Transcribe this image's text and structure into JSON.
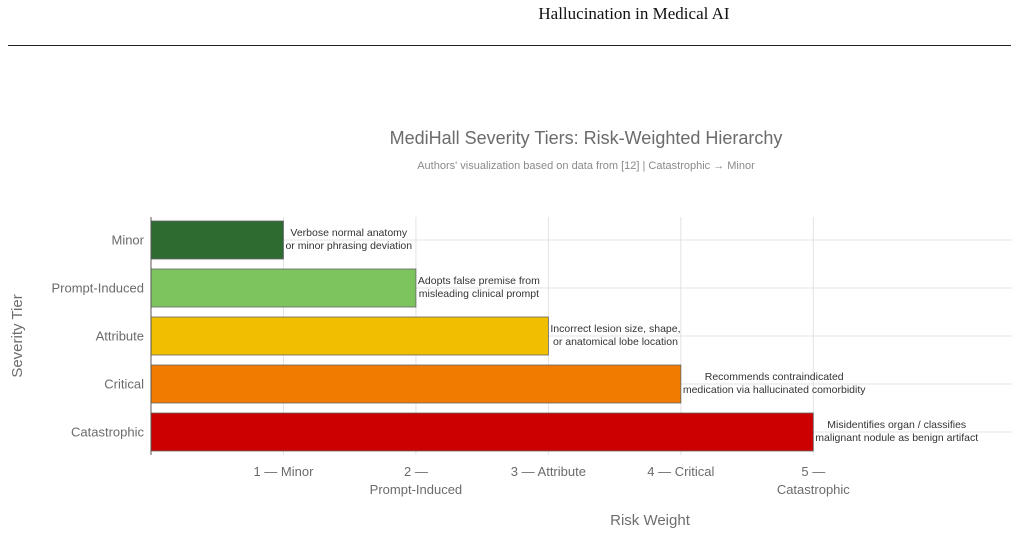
{
  "page": {
    "running_header": "Hallucination in Medical AI"
  },
  "chart_data": {
    "type": "bar",
    "orientation": "horizontal",
    "title": "MediHall Severity Tiers: Risk-Weighted Hierarchy",
    "subtitle": "Authors' visualization based on data from [12] | Catastrophic → Minor",
    "xlabel": "Risk Weight",
    "ylabel": "Severity Tier",
    "categories": [
      "Minor",
      "Prompt-Induced",
      "Attribute",
      "Critical",
      "Catastrophic"
    ],
    "values": [
      1,
      2,
      3,
      4,
      5
    ],
    "colors": [
      "#2e6b30",
      "#7ec45e",
      "#f0bf00",
      "#f07b00",
      "#cc0000"
    ],
    "bar_labels": [
      [
        "Verbose normal anatomy",
        "or minor phrasing deviation"
      ],
      [
        "Adopts false premise from",
        "misleading clinical prompt"
      ],
      [
        "Incorrect lesion size, shape,",
        "or anatomical lobe location"
      ],
      [
        "Recommends contraindicated",
        "medication via hallucinated comorbidity"
      ],
      [
        "Misidentifies organ / classifies",
        "malignant nodule as benign artifact"
      ]
    ],
    "x_ticks": [
      {
        "value": 1,
        "lines": [
          "1 — Minor"
        ]
      },
      {
        "value": 2,
        "lines": [
          "2 —",
          "Prompt-Induced"
        ]
      },
      {
        "value": 3,
        "lines": [
          "3 — Attribute"
        ]
      },
      {
        "value": 4,
        "lines": [
          "4 — Critical"
        ]
      },
      {
        "value": 5,
        "lines": [
          "5 —",
          "Catastrophic"
        ]
      }
    ],
    "xlim": [
      0,
      6.5
    ],
    "grid": true,
    "legend": "none"
  }
}
